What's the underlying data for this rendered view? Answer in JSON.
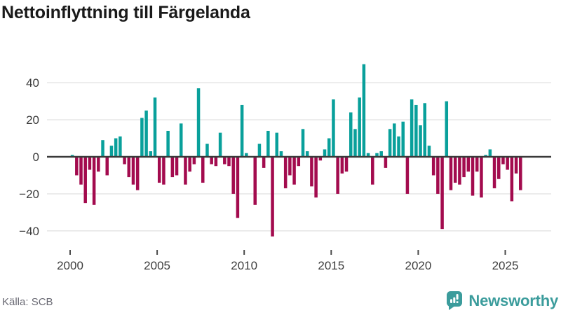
{
  "title": "Nettoinflyttning till Färgelanda",
  "source": "Källa: SCB",
  "brand": {
    "name": "Newsworthy"
  },
  "colors": {
    "positive_bar": "#09a09b",
    "negative_bar": "#a30b4e",
    "brand_teal": "#3b9c9c",
    "grid_line": "#e3e3e3",
    "zero_line": "#3a3a3a",
    "axis_text": "#3d3d3d",
    "title_text": "#1a1a1a",
    "source_text": "#696973"
  },
  "chart_data": {
    "type": "bar",
    "title": "Nettoinflyttning till Färgelanda",
    "frequency": "quarterly",
    "start_period": "2000 Q1",
    "end_period": "2025 Q4",
    "unit": "net migration, persons per quarter",
    "values": [
      1,
      -10,
      -15,
      -25,
      -7,
      -26,
      -8,
      9,
      -10,
      6,
      10,
      11,
      -4,
      -11,
      -15,
      -18,
      21,
      25,
      3,
      32,
      -14,
      -15,
      14,
      -11,
      -10,
      18,
      -15,
      -8,
      -4,
      37,
      -14,
      7,
      -4,
      -5,
      13,
      -4,
      -5,
      -20,
      -33,
      28,
      2,
      0,
      -26,
      7,
      -6,
      14,
      -43,
      13,
      3,
      -17,
      -10,
      -15,
      -5,
      15,
      3,
      -16,
      -22,
      -2,
      4,
      10,
      31,
      -20,
      -9,
      -8,
      24,
      15,
      32,
      50,
      2,
      -15,
      2,
      3,
      -6,
      15,
      18,
      11,
      19,
      -20,
      31,
      28,
      17,
      29,
      6,
      -10,
      -20,
      -39,
      30,
      -18,
      -14,
      -15,
      -11,
      -8,
      -21,
      -8,
      -22,
      1,
      4,
      -17,
      -12,
      -4,
      -7,
      -24,
      -9,
      -18
    ],
    "missing_periods": [
      "2010 Q2"
    ],
    "xticks": [
      2000,
      2005,
      2010,
      2015,
      2020,
      2025
    ],
    "yticks": [
      40,
      20,
      0,
      -20,
      -40
    ],
    "ylim": [
      -47,
      53
    ],
    "grid": "horizontal",
    "legend": "none",
    "positive_color": "#09a09b",
    "negative_color": "#a30b4e"
  }
}
